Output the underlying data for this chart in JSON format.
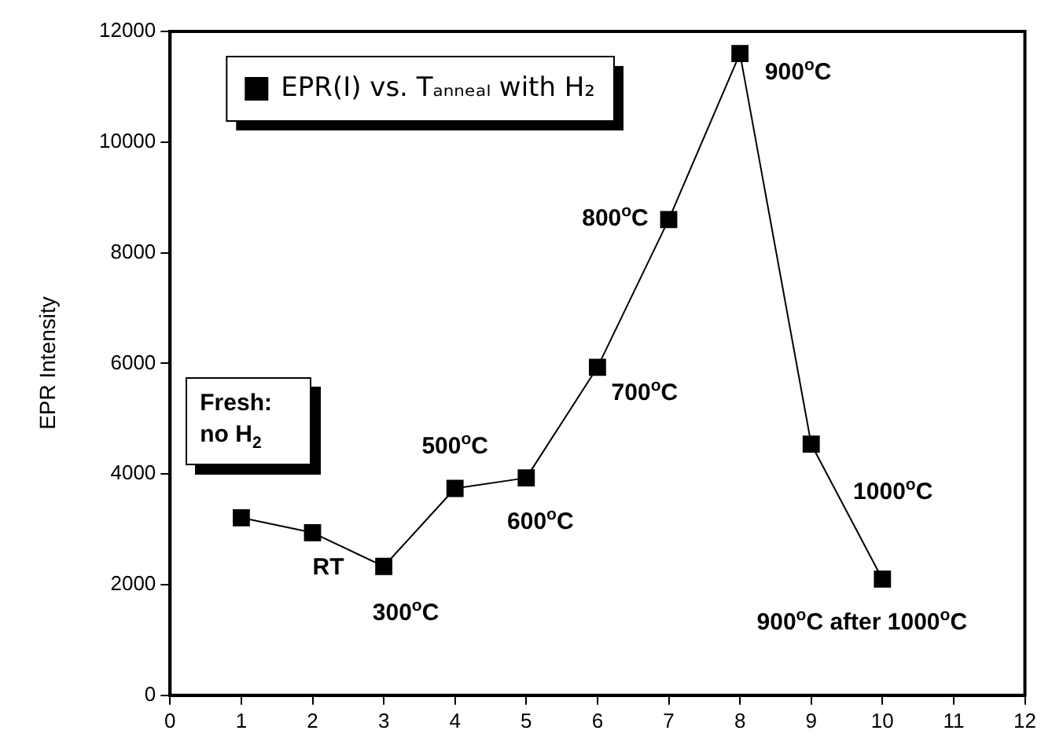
{
  "chart_data": {
    "type": "line",
    "ylabel": "EPR Intensity",
    "x": [
      1,
      2,
      3,
      4,
      5,
      6,
      7,
      8,
      9,
      10
    ],
    "series": [
      {
        "name": "EPR(I) vs. Tₐₙₙₑₐₗ with H₂",
        "color": "#000000",
        "values": [
          3210,
          2940,
          2330,
          3740,
          3930,
          5930,
          8600,
          11600,
          4540,
          2100
        ]
      }
    ],
    "xlim": [
      0,
      12
    ],
    "xticks": [
      0,
      1,
      2,
      3,
      4,
      5,
      6,
      7,
      8,
      9,
      10,
      11,
      12
    ],
    "ylim": [
      0,
      12000
    ],
    "yticks": [
      0,
      2000,
      4000,
      6000,
      8000,
      10000,
      12000
    ],
    "grid": false,
    "legend": "top left",
    "marker": "square",
    "line_style": "solid",
    "annotations": [
      "Fresh: no H$_{2}$",
      {
        "text": "RT",
        "x": 2,
        "y": 2940
      },
      {
        "text": "300$^{o}$C",
        "x": 3,
        "y": 2330
      },
      {
        "text": "500$^{o}$C",
        "x": 4,
        "y": 3740
      },
      {
        "text": "600$^{o}$C",
        "x": 5,
        "y": 3930
      },
      {
        "text": "700$^{o}$C",
        "x": 6,
        "y": 5930
      },
      {
        "text": "800$^{o}$C",
        "x": 7,
        "y": 8600
      },
      {
        "text": "900$^{o}$C",
        "x": 8,
        "y": 11600
      },
      {
        "text": "1000$^{o}$C",
        "x": 9,
        "y": 4540
      },
      {
        "text": "900$^{o}$C after 1000$^{o}$C",
        "x": 10,
        "y": 2100
      }
    ]
  }
}
